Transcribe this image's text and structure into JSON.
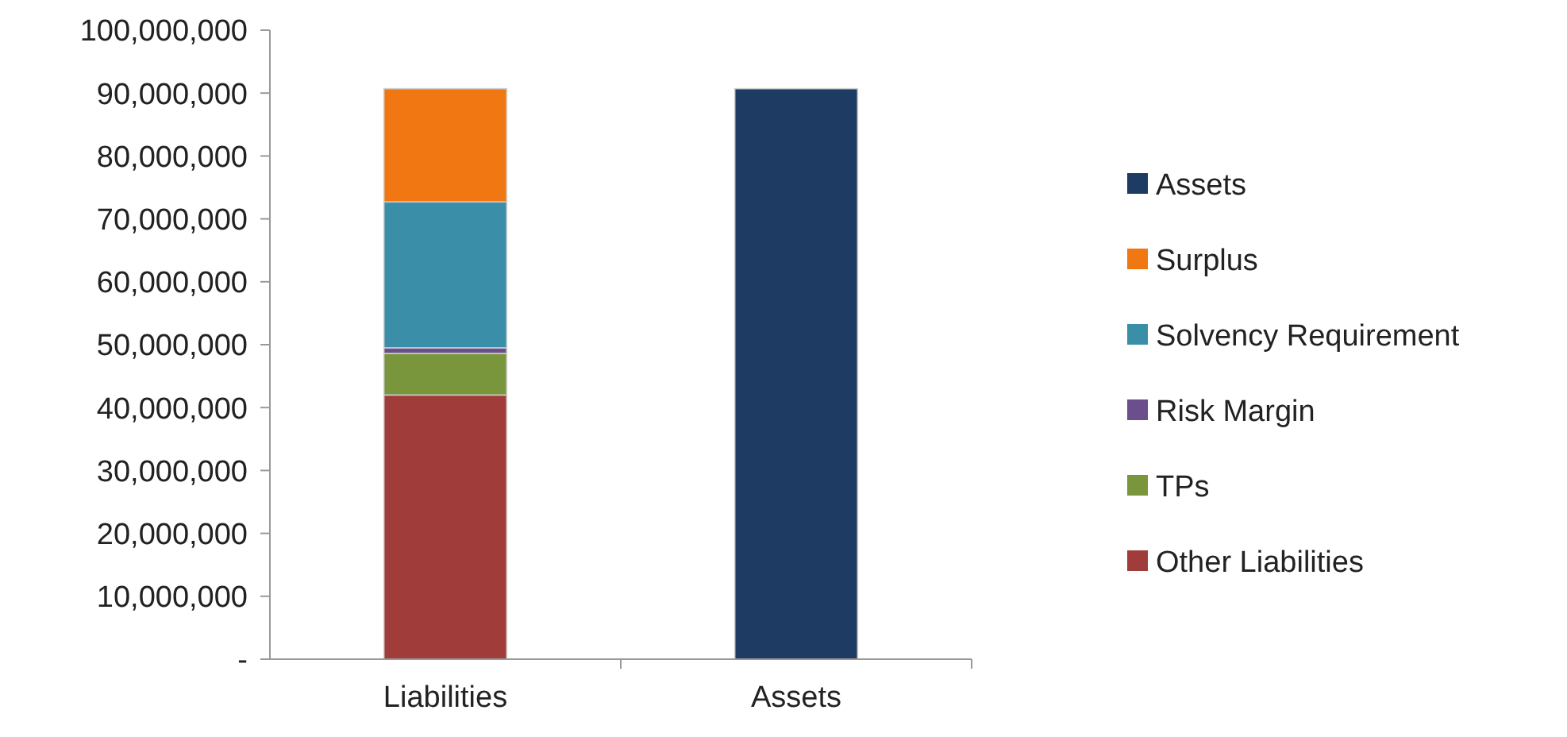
{
  "chart_data": {
    "type": "bar",
    "stacked": true,
    "categories": [
      "Liabilities",
      "Assets"
    ],
    "series": [
      {
        "name": "Other Liabilities",
        "color": "#a03c3a",
        "values": [
          42000000,
          null
        ]
      },
      {
        "name": "TPs",
        "color": "#7a963c",
        "values": [
          6600000,
          null
        ]
      },
      {
        "name": "Risk Margin",
        "color": "#6a4f8c",
        "values": [
          900000,
          null
        ]
      },
      {
        "name": "Solvency Requirement",
        "color": "#3a8ea8",
        "values": [
          23200000,
          null
        ]
      },
      {
        "name": "Surplus",
        "color": "#f07712",
        "values": [
          18000000,
          null
        ]
      },
      {
        "name": "Assets",
        "color": "#1e3b63",
        "values": [
          null,
          90700000
        ]
      }
    ],
    "ylim": [
      0,
      100000000
    ],
    "yticks": [
      {
        "value": 0,
        "label": "-"
      },
      {
        "value": 10000000,
        "label": "10,000,000"
      },
      {
        "value": 20000000,
        "label": "20,000,000"
      },
      {
        "value": 30000000,
        "label": "30,000,000"
      },
      {
        "value": 40000000,
        "label": "40,000,000"
      },
      {
        "value": 50000000,
        "label": "50,000,000"
      },
      {
        "value": 60000000,
        "label": "60,000,000"
      },
      {
        "value": 70000000,
        "label": "70,000,000"
      },
      {
        "value": 80000000,
        "label": "80,000,000"
      },
      {
        "value": 90000000,
        "label": "90,000,000"
      },
      {
        "value": 100000000,
        "label": "100,000,000"
      }
    ],
    "grid": false,
    "legend": "right"
  }
}
